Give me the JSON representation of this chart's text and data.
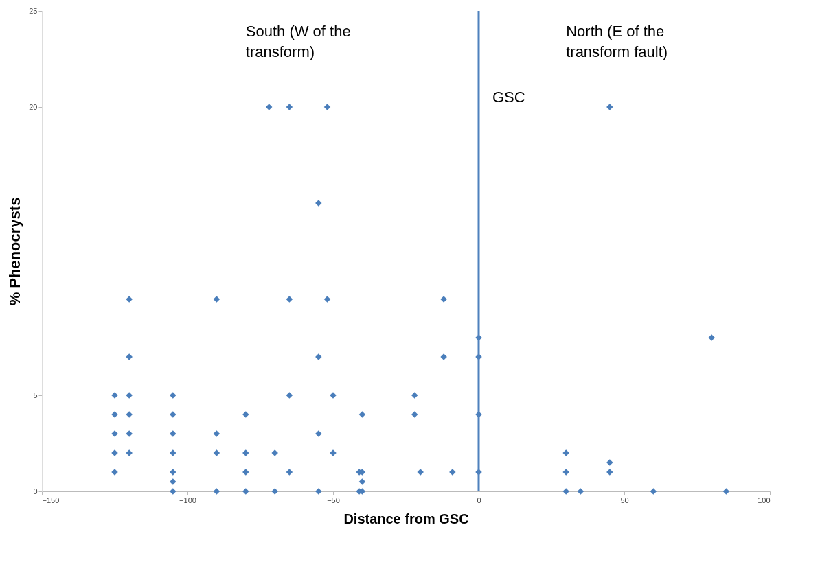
{
  "chart_data": {
    "type": "scatter",
    "xlabel": "Distance from GSC",
    "ylabel": "% Phenocrysts",
    "xlim": [
      -150,
      100
    ],
    "xticks": [
      -150,
      -100,
      -50,
      0,
      50,
      100
    ],
    "ylim": [
      0,
      25
    ],
    "yticks": [
      0,
      5,
      20,
      25
    ],
    "grid": false,
    "marker": "diamond",
    "series": [
      {
        "color": "#4a7ebb",
        "x": [
          -125,
          -125,
          -125,
          -125,
          -125,
          -120,
          -120,
          -120,
          -120,
          -120,
          -120,
          -105,
          -105,
          -105,
          -105,
          -105,
          -105,
          -105,
          -90,
          -90,
          -90,
          -90,
          -80,
          -80,
          -80,
          -80,
          -72,
          -70,
          -70,
          -65,
          -65,
          -65,
          -65,
          -55,
          -55,
          -55,
          -55,
          -52,
          -52,
          -50,
          -50,
          -41,
          -41,
          -40,
          -40,
          -40,
          -40,
          -22,
          -22,
          -20,
          -12,
          -12,
          -9,
          0,
          0,
          0,
          0,
          30,
          30,
          30,
          35,
          45,
          45,
          45,
          60,
          80,
          85
        ],
        "values": [
          5,
          4,
          3,
          2,
          1,
          10,
          7,
          5,
          4,
          3,
          2,
          5,
          4,
          3,
          2,
          1,
          0.5,
          0,
          10,
          3,
          2,
          0,
          4,
          2,
          1,
          0,
          20,
          2,
          0,
          20,
          10,
          5,
          1,
          15,
          7,
          3,
          0,
          20,
          10,
          5,
          2,
          1,
          0,
          4,
          1,
          0.5,
          0,
          5,
          4,
          1,
          10,
          7,
          1,
          8,
          7,
          4,
          1,
          2,
          1,
          0,
          0,
          20,
          1.5,
          1,
          0,
          8,
          0
        ]
      }
    ],
    "ref_lines": [
      {
        "axis": "x",
        "value": 0,
        "label": "GSC",
        "color": "#4f81bd"
      }
    ],
    "annotations": [
      "South (W of the transform)",
      "North (E of the transform fault)"
    ]
  }
}
